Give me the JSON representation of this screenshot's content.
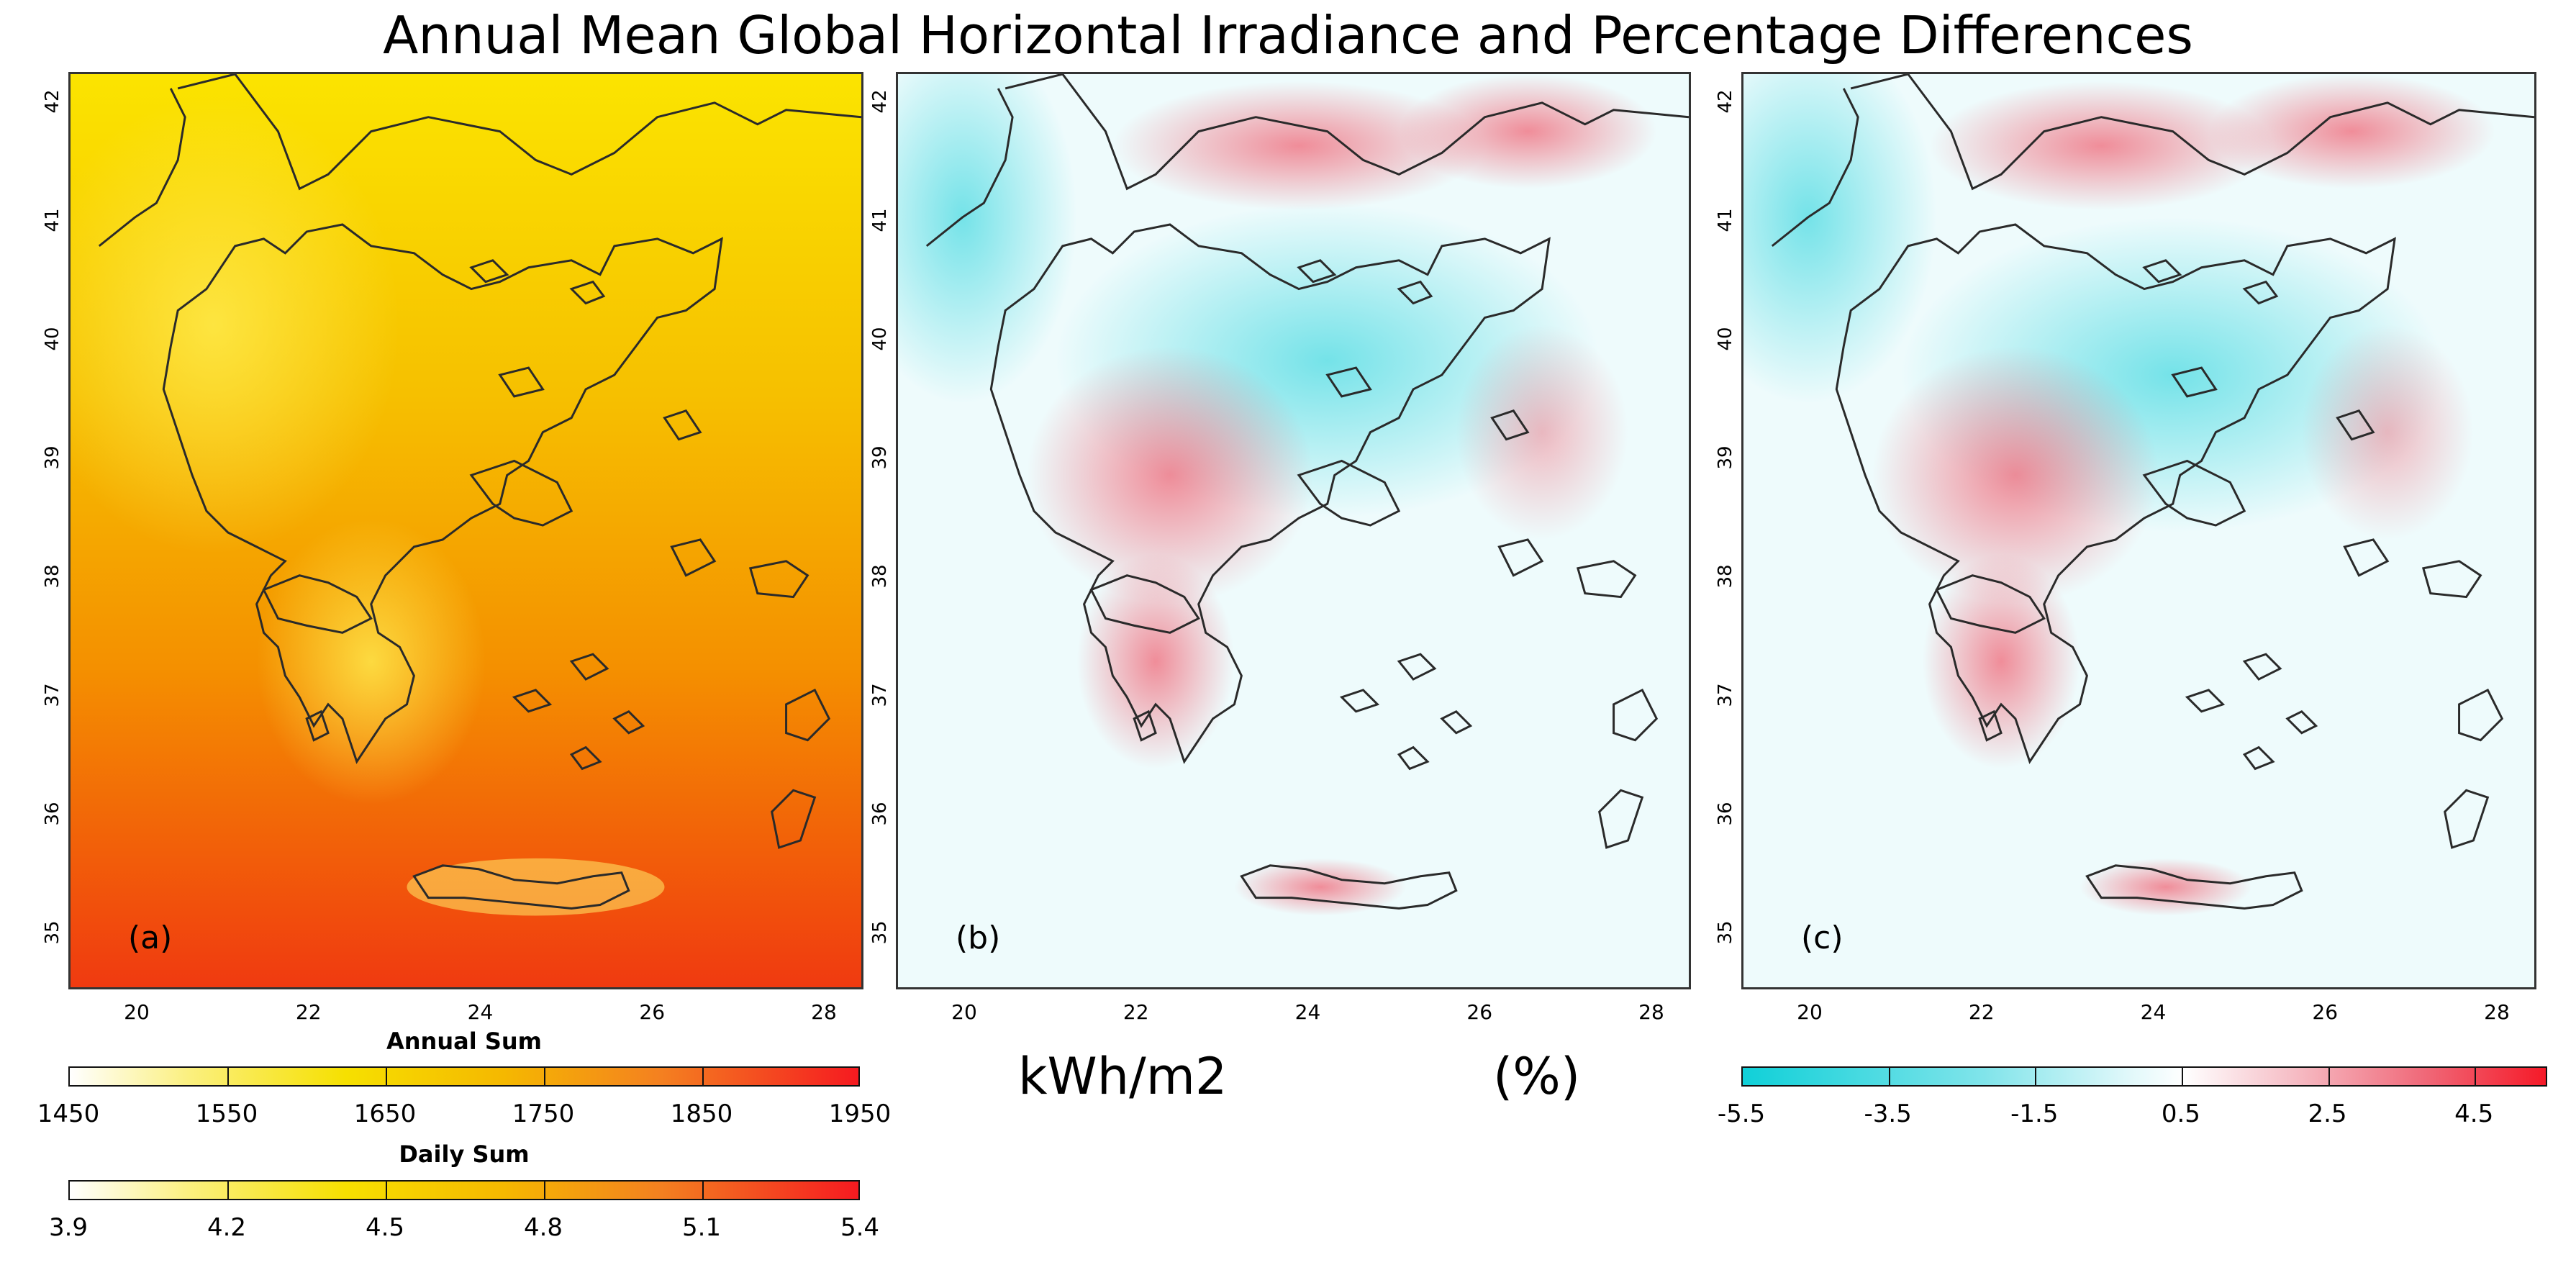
{
  "title": "Annual Mean Global Horizontal Irradiance and Percentage Differences",
  "panels": [
    {
      "label": "(a)"
    },
    {
      "label": "(b)"
    },
    {
      "label": "(c)"
    }
  ],
  "axes": {
    "latitude_ticks": [
      "42",
      "41",
      "40",
      "39",
      "38",
      "37",
      "36",
      "35"
    ],
    "longitude_ticks": [
      "20",
      "22",
      "24",
      "26",
      "28"
    ]
  },
  "colorbar_annual": {
    "title": "Annual Sum",
    "ticks": [
      "1450",
      "1550",
      "1650",
      "1750",
      "1850",
      "1950"
    ]
  },
  "colorbar_daily": {
    "title": "Daily Sum",
    "ticks": [
      "3.9",
      "4.2",
      "4.5",
      "4.8",
      "5.1",
      "5.4"
    ]
  },
  "colorbar_diff": {
    "ticks": [
      "-5.5",
      "-3.5",
      "-1.5",
      "0.5",
      "2.5",
      "4.5"
    ]
  },
  "units": {
    "energy": "kWh/m2",
    "percent": "(%)"
  },
  "colors": {
    "yellow_low": "#fff8c8",
    "yellow": "#f7e000",
    "orange": "#f5a000",
    "red_high": "#f52a1a",
    "cyan": "#22d8dc",
    "pink": "#f06070"
  }
}
